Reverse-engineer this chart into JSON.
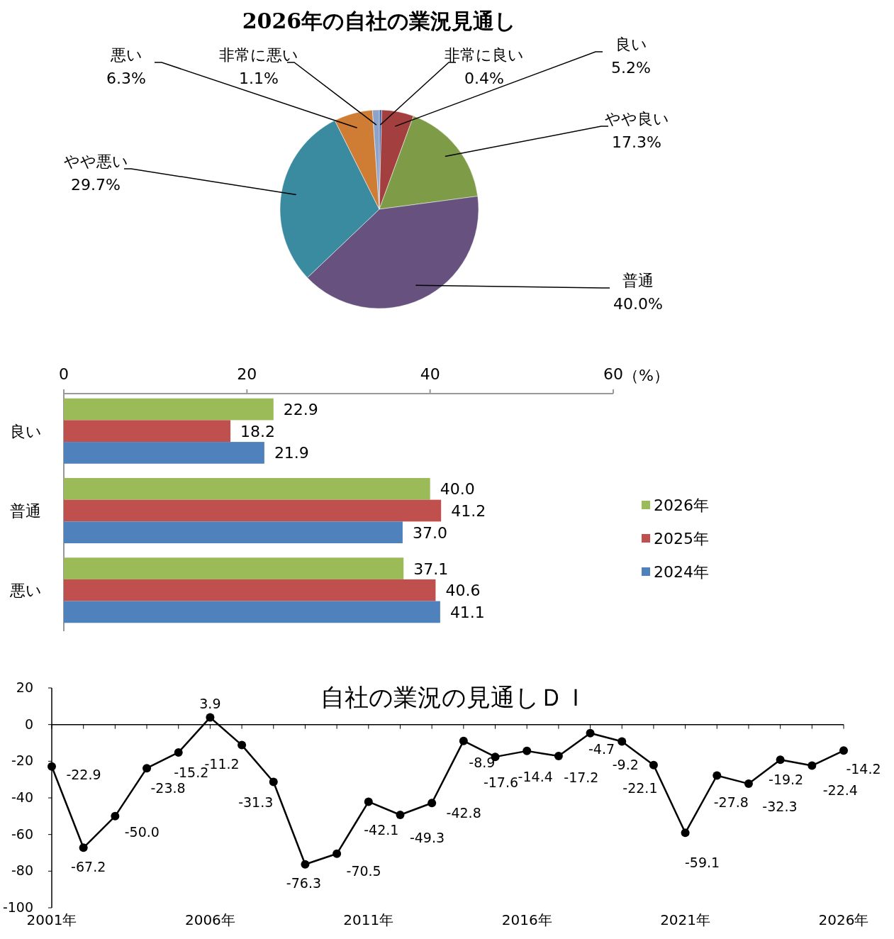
{
  "chart_data": [
    {
      "type": "pie",
      "title": "2026年の自社の業況見通し",
      "categories": [
        "非常に良い",
        "良い",
        "やや良い",
        "普通",
        "やや悪い",
        "悪い",
        "非常に悪い"
      ],
      "values": [
        0.4,
        5.2,
        17.3,
        40.0,
        29.7,
        6.3,
        1.1
      ],
      "value_labels": [
        "0.4%",
        "5.2%",
        "17.3%",
        "40.0%",
        "29.7%",
        "6.3%",
        "1.1%"
      ],
      "colors": [
        "#3d64a8",
        "#a43f3f",
        "#7e9c48",
        "#67517f",
        "#3a8ba0",
        "#cf7c35",
        "#8ea3c9"
      ],
      "legend": false
    },
    {
      "type": "bar",
      "orientation": "horizontal",
      "xlabel": "（%）",
      "categories": [
        "良い",
        "普通",
        "悪い"
      ],
      "xlim": [
        0,
        60
      ],
      "xticks": [
        0,
        20,
        40,
        60
      ],
      "grid": false,
      "legend": "right",
      "series": [
        {
          "name": "2026年",
          "color": "#9bbb59",
          "values": [
            22.9,
            40.0,
            37.1
          ],
          "value_labels": [
            "22.9",
            "40.0",
            "37.1"
          ]
        },
        {
          "name": "2025年",
          "color": "#c0504d",
          "values": [
            18.2,
            41.2,
            40.6
          ],
          "value_labels": [
            "18.2",
            "41.2",
            "40.6"
          ]
        },
        {
          "name": "2024年",
          "color": "#4f81bd",
          "values": [
            21.9,
            37.0,
            41.1
          ],
          "value_labels": [
            "21.9",
            "37.0",
            "41.1"
          ]
        }
      ]
    },
    {
      "type": "line",
      "title": "自社の業況の見通しＤＩ",
      "categories": [
        "2001年",
        null,
        null,
        null,
        null,
        "2006年",
        null,
        null,
        null,
        null,
        "2011年",
        null,
        null,
        null,
        null,
        "2016年",
        null,
        null,
        null,
        null,
        "2021年",
        null,
        null,
        null,
        null,
        "2026年"
      ],
      "ylim": [
        -100,
        20
      ],
      "yticks": [
        -100,
        -80,
        -60,
        -40,
        -20,
        0,
        20
      ],
      "legend": false,
      "marker": "circle",
      "line_style": "solid",
      "series": [
        {
          "color": "#000000",
          "values": [
            -22.9,
            -67.2,
            -50.0,
            -23.8,
            -15.2,
            3.9,
            -11.2,
            -31.3,
            -76.3,
            -70.5,
            -42.1,
            -49.3,
            -42.8,
            -8.9,
            -17.6,
            -14.4,
            -17.2,
            -4.7,
            -9.2,
            -22.1,
            -59.1,
            -27.8,
            -32.3,
            -19.2,
            -22.4,
            -14.2
          ],
          "value_labels": [
            "-22.9",
            "-67.2",
            "-50.0",
            "-23.8",
            "-15.2",
            "3.9",
            "-11.2",
            "-31.3",
            "-76.3",
            "-70.5",
            "-42.1",
            "-49.3",
            "-42.8",
            "-8.9",
            "-17.6",
            "-14.4",
            "-17.2",
            "-4.7",
            "-9.2",
            "-22.1",
            "-59.1",
            "-27.8",
            "-32.3",
            "-19.2",
            "-22.4",
            "-14.2"
          ]
        }
      ]
    }
  ]
}
